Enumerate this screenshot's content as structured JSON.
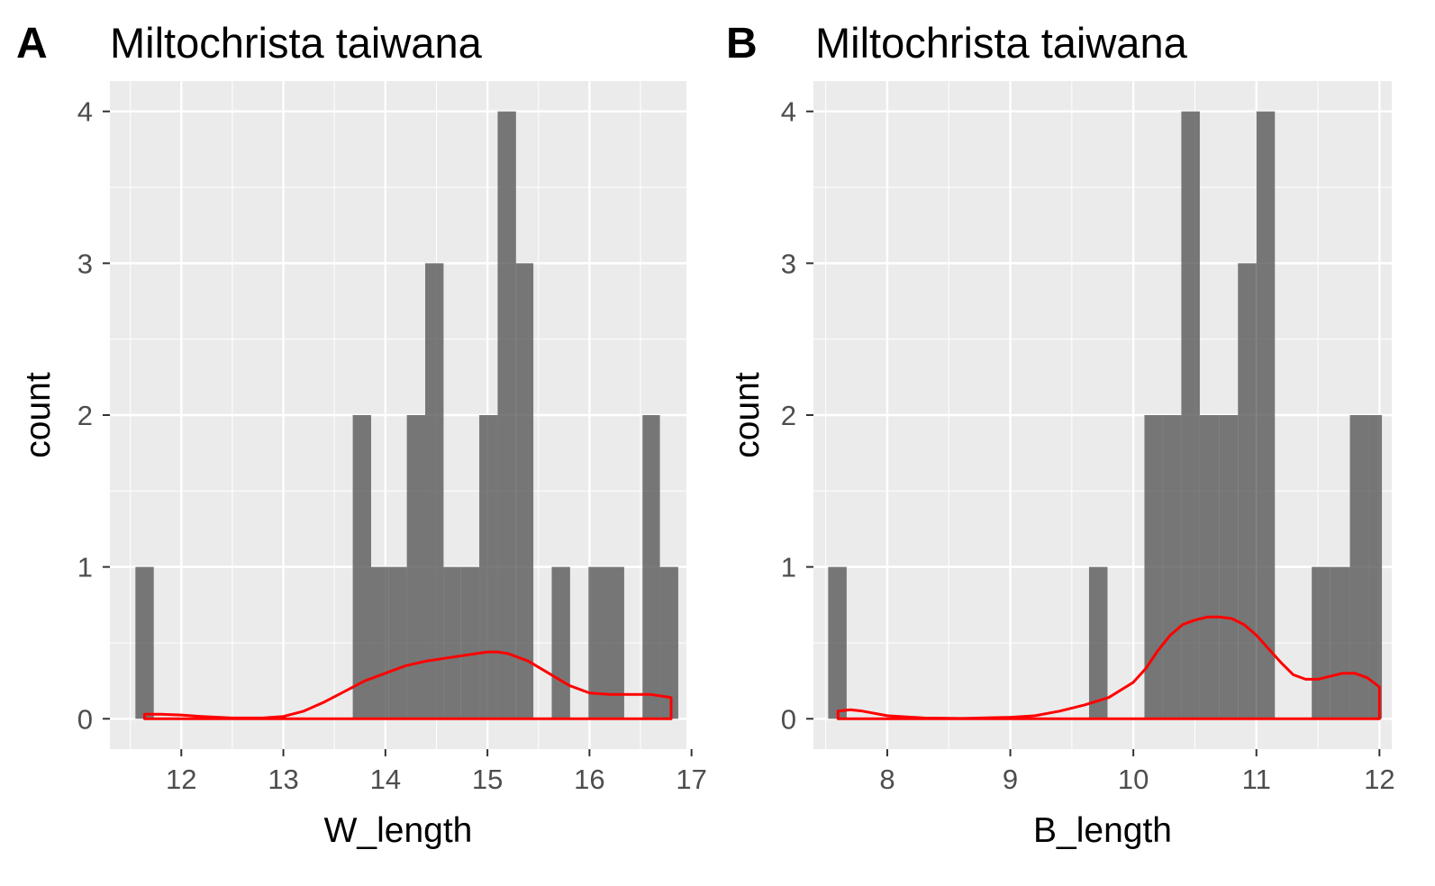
{
  "colors": {
    "panel_bg": "#EBEBEB",
    "grid_major": "#FFFFFF",
    "bar_fill": "#595959",
    "bar_opacity": 0.8,
    "density_line": "#FF0000",
    "axis_text": "#4D4D4D",
    "title_text": "#000000"
  },
  "chart_data": [
    {
      "type": "bar",
      "panel_tag": "A",
      "title": "Miltochrista taiwana",
      "xlabel": "W_length",
      "ylabel": "count",
      "xlim": [
        11.3,
        16.95
      ],
      "ylim": [
        -0.2,
        4.2
      ],
      "xticks": [
        12,
        13,
        14,
        15,
        16,
        17
      ],
      "yticks": [
        0,
        1,
        2,
        3,
        4
      ],
      "grid": true,
      "bins": [
        {
          "x0": 11.55,
          "x1": 11.73,
          "count": 1
        },
        {
          "x0": 13.68,
          "x1": 13.86,
          "count": 2
        },
        {
          "x0": 13.86,
          "x1": 14.03,
          "count": 1
        },
        {
          "x0": 14.03,
          "x1": 14.21,
          "count": 1
        },
        {
          "x0": 14.21,
          "x1": 14.39,
          "count": 2
        },
        {
          "x0": 14.39,
          "x1": 14.57,
          "count": 3
        },
        {
          "x0": 14.57,
          "x1": 14.74,
          "count": 1
        },
        {
          "x0": 14.74,
          "x1": 14.92,
          "count": 1
        },
        {
          "x0": 14.92,
          "x1": 15.1,
          "count": 2
        },
        {
          "x0": 15.1,
          "x1": 15.28,
          "count": 4
        },
        {
          "x0": 15.28,
          "x1": 15.45,
          "count": 3
        },
        {
          "x0": 15.63,
          "x1": 15.81,
          "count": 1
        },
        {
          "x0": 15.99,
          "x1": 16.16,
          "count": 1
        },
        {
          "x0": 16.16,
          "x1": 16.34,
          "count": 1
        },
        {
          "x0": 16.52,
          "x1": 16.69,
          "count": 2
        },
        {
          "x0": 16.69,
          "x1": 16.87,
          "count": 1
        }
      ],
      "density": {
        "x": [
          11.64,
          11.8,
          12.0,
          12.2,
          12.5,
          12.8,
          13.0,
          13.2,
          13.4,
          13.6,
          13.8,
          14.0,
          14.2,
          14.4,
          14.6,
          14.8,
          15.0,
          15.1,
          15.2,
          15.4,
          15.6,
          15.8,
          16.0,
          16.2,
          16.4,
          16.6,
          16.8
        ],
        "y": [
          0.03,
          0.03,
          0.025,
          0.015,
          0.005,
          0.005,
          0.015,
          0.05,
          0.11,
          0.18,
          0.25,
          0.3,
          0.35,
          0.38,
          0.4,
          0.42,
          0.44,
          0.44,
          0.43,
          0.38,
          0.3,
          0.22,
          0.17,
          0.16,
          0.16,
          0.16,
          0.14
        ]
      }
    },
    {
      "type": "bar",
      "panel_tag": "B",
      "title": "Miltochrista taiwana",
      "xlabel": "B_length",
      "ylabel": "count",
      "xlim": [
        7.4,
        12.1
      ],
      "ylim": [
        -0.2,
        4.2
      ],
      "xticks": [
        8,
        9,
        10,
        11,
        12
      ],
      "yticks": [
        0,
        1,
        2,
        3,
        4
      ],
      "grid": true,
      "bins": [
        {
          "x0": 7.52,
          "x1": 7.67,
          "count": 1
        },
        {
          "x0": 9.64,
          "x1": 9.79,
          "count": 1
        },
        {
          "x0": 10.09,
          "x1": 10.24,
          "count": 2
        },
        {
          "x0": 10.24,
          "x1": 10.39,
          "count": 2
        },
        {
          "x0": 10.39,
          "x1": 10.54,
          "count": 4
        },
        {
          "x0": 10.54,
          "x1": 10.7,
          "count": 2
        },
        {
          "x0": 10.7,
          "x1": 10.85,
          "count": 2
        },
        {
          "x0": 10.85,
          "x1": 11.0,
          "count": 3
        },
        {
          "x0": 11.0,
          "x1": 11.15,
          "count": 4
        },
        {
          "x0": 11.45,
          "x1": 11.6,
          "count": 1
        },
        {
          "x0": 11.6,
          "x1": 11.76,
          "count": 1
        },
        {
          "x0": 11.76,
          "x1": 11.91,
          "count": 2
        },
        {
          "x0": 11.91,
          "x1": 12.02,
          "count": 2
        }
      ],
      "density": {
        "x": [
          7.6,
          7.7,
          7.8,
          8.0,
          8.3,
          8.6,
          9.0,
          9.2,
          9.4,
          9.6,
          9.8,
          10.0,
          10.1,
          10.2,
          10.3,
          10.4,
          10.5,
          10.6,
          10.7,
          10.8,
          10.9,
          11.0,
          11.1,
          11.2,
          11.3,
          11.4,
          11.5,
          11.6,
          11.7,
          11.8,
          11.9,
          12.0
        ],
        "y": [
          0.05,
          0.06,
          0.05,
          0.02,
          0.005,
          0.002,
          0.01,
          0.02,
          0.05,
          0.09,
          0.14,
          0.24,
          0.33,
          0.45,
          0.55,
          0.62,
          0.65,
          0.67,
          0.67,
          0.66,
          0.62,
          0.55,
          0.46,
          0.37,
          0.29,
          0.26,
          0.26,
          0.28,
          0.3,
          0.3,
          0.27,
          0.21
        ]
      }
    }
  ]
}
